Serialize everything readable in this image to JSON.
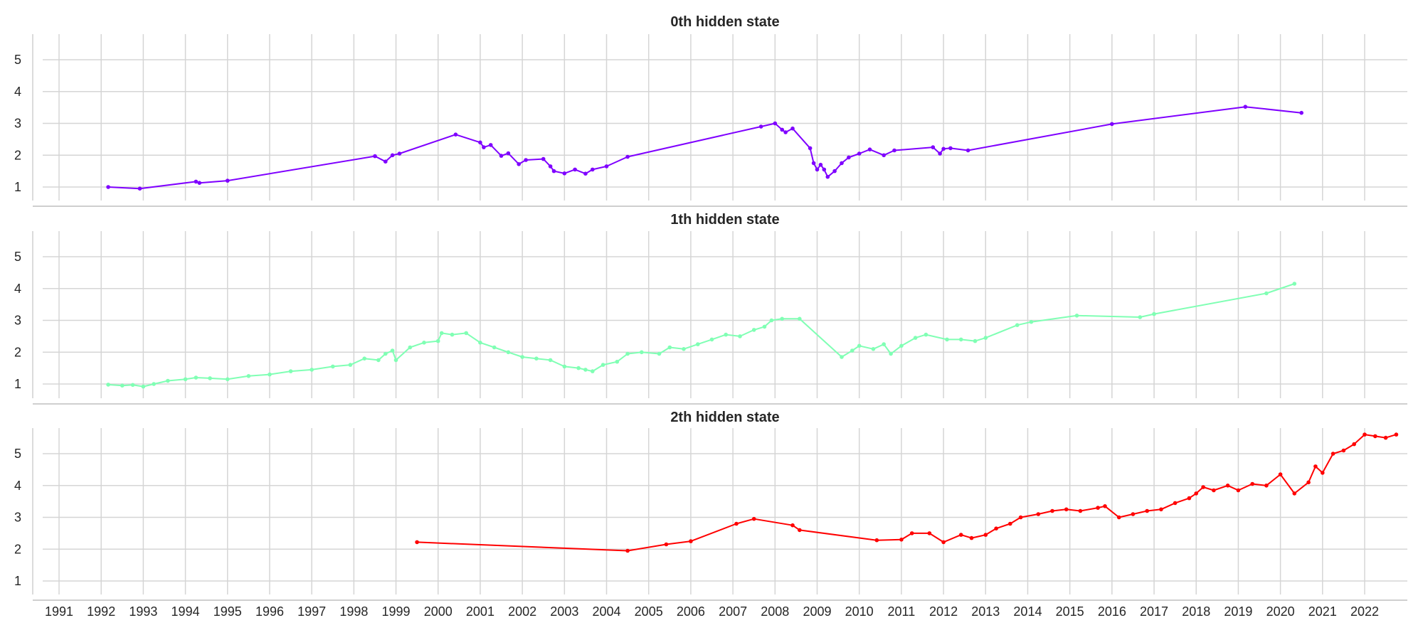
{
  "figure": {
    "x_tick_labels": [
      "1991",
      "1992",
      "1993",
      "1994",
      "1995",
      "1996",
      "1997",
      "1998",
      "1999",
      "2000",
      "2001",
      "2002",
      "2003",
      "2004",
      "2005",
      "2006",
      "2007",
      "2008",
      "2009",
      "2010",
      "2011",
      "2012",
      "2013",
      "2014",
      "2015",
      "2016",
      "2017",
      "2018",
      "2019",
      "2020",
      "2021",
      "2022"
    ],
    "y_tick_labels": [
      "1",
      "2",
      "3",
      "4",
      "5"
    ]
  },
  "chart_data": [
    {
      "type": "line",
      "title": "0th hidden state",
      "xlabel": "",
      "ylabel": "",
      "ylim": [
        0.6,
        5.8
      ],
      "xlim": [
        "1991-01-01",
        "2022-12-31"
      ],
      "grid": true,
      "color": "#7f00ff",
      "series": [
        {
          "x": [
            "1992-02",
            "1992-11",
            "1994-03",
            "1994-04",
            "1994-12",
            "1998-06",
            "1998-09",
            "1998-11",
            "1999-01",
            "2000-05",
            "2001-00",
            "2001-01",
            "2001-03",
            "2001-06",
            "2001-08",
            "2001-11",
            "2002-01",
            "2002-06",
            "2002-08",
            "2002-09",
            "2003-00",
            "2003-03",
            "2003-06",
            "2003-08",
            "2004-00",
            "2004-06",
            "2007-08",
            "2008-00",
            "2008-02",
            "2008-03",
            "2008-05",
            "2008-10",
            "2008-11",
            "2009-00",
            "2009-01",
            "2009-02",
            "2009-03",
            "2009-05",
            "2009-07",
            "2009-09",
            "2010-00",
            "2010-03",
            "2010-07",
            "2010-10",
            "2011-09",
            "2011-11",
            "2012-00",
            "2012-02",
            "2012-07",
            "2016-00",
            "2019-02",
            "2020-06"
          ],
          "y": [
            1.0,
            0.95,
            1.17,
            1.13,
            1.2,
            1.97,
            1.8,
            2.0,
            2.05,
            2.65,
            2.4,
            2.25,
            2.32,
            1.98,
            2.06,
            1.72,
            1.85,
            1.88,
            1.65,
            1.5,
            1.43,
            1.55,
            1.42,
            1.55,
            1.65,
            1.95,
            2.9,
            3.0,
            2.8,
            2.72,
            2.84,
            2.22,
            1.75,
            1.55,
            1.7,
            1.55,
            1.32,
            1.5,
            1.75,
            1.93,
            2.05,
            2.18,
            2.0,
            2.15,
            2.25,
            2.05,
            2.2,
            2.22,
            2.15,
            2.98,
            3.52,
            3.33
          ]
        }
      ]
    },
    {
      "type": "line",
      "title": "1th hidden state",
      "xlabel": "",
      "ylabel": "",
      "ylim": [
        0.6,
        5.8
      ],
      "xlim": [
        "1991-01-01",
        "2022-12-31"
      ],
      "grid": true,
      "color": "#80ffb4",
      "series": [
        {
          "x": [
            "1992-02",
            "1992-06",
            "1992-09",
            "1993-00",
            "1993-03",
            "1993-07",
            "1994-00",
            "1994-03",
            "1994-07",
            "1995-00",
            "1995-06",
            "1996-00",
            "1996-06",
            "1997-00",
            "1997-06",
            "1997-11",
            "1998-03",
            "1998-07",
            "1998-09",
            "1998-11",
            "1999-00",
            "1999-04",
            "1999-08",
            "2000-00",
            "2000-01",
            "2000-04",
            "2000-08",
            "2001-00",
            "2001-04",
            "2001-08",
            "2002-00",
            "2002-04",
            "2002-08",
            "2003-00",
            "2003-04",
            "2003-06",
            "2003-08",
            "2003-11",
            "2004-03",
            "2004-06",
            "2004-10",
            "2005-03",
            "2005-06",
            "2005-10",
            "2006-02",
            "2006-06",
            "2006-10",
            "2007-02",
            "2007-06",
            "2007-09",
            "2007-11",
            "2008-02",
            "2008-07",
            "2009-07",
            "2009-10",
            "2010-00",
            "2010-04",
            "2010-07",
            "2010-09",
            "2011-00",
            "2011-04",
            "2011-07",
            "2012-01",
            "2012-05",
            "2012-09",
            "2013-00",
            "2013-09",
            "2014-01",
            "2015-02",
            "2016-08",
            "2017-00",
            "2019-08",
            "2020-04"
          ],
          "y": [
            0.98,
            0.95,
            0.97,
            0.92,
            1.0,
            1.1,
            1.15,
            1.2,
            1.18,
            1.15,
            1.25,
            1.3,
            1.4,
            1.45,
            1.55,
            1.6,
            1.8,
            1.75,
            1.95,
            2.05,
            1.75,
            2.15,
            2.3,
            2.35,
            2.6,
            2.55,
            2.6,
            2.3,
            2.15,
            2.0,
            1.85,
            1.8,
            1.75,
            1.55,
            1.5,
            1.45,
            1.4,
            1.6,
            1.7,
            1.95,
            2.0,
            1.95,
            2.15,
            2.1,
            2.25,
            2.4,
            2.55,
            2.5,
            2.7,
            2.8,
            3.0,
            3.05,
            3.05,
            1.85,
            2.05,
            2.2,
            2.1,
            2.25,
            1.95,
            2.2,
            2.45,
            2.55,
            2.4,
            2.4,
            2.35,
            2.45,
            2.85,
            2.95,
            3.15,
            3.1,
            3.2,
            3.85,
            4.15
          ]
        }
      ]
    },
    {
      "type": "line",
      "title": "2th hidden state",
      "xlabel": "",
      "ylabel": "",
      "ylim": [
        0.6,
        5.8
      ],
      "xlim": [
        "1991-01-01",
        "2022-12-31"
      ],
      "grid": true,
      "color": "#ff0000",
      "series": [
        {
          "x": [
            "1999-06",
            "2004-06",
            "2005-05",
            "2006-00",
            "2007-01",
            "2007-06",
            "2008-05",
            "2008-07",
            "2010-05",
            "2011-00",
            "2011-03",
            "2011-08",
            "2012-00",
            "2012-05",
            "2012-08",
            "2013-00",
            "2013-03",
            "2013-07",
            "2013-10",
            "2014-03",
            "2014-07",
            "2014-11",
            "2015-03",
            "2015-08",
            "2015-10",
            "2016-02",
            "2016-06",
            "2016-10",
            "2017-02",
            "2017-06",
            "2017-10",
            "2018-00",
            "2018-02",
            "2018-05",
            "2018-09",
            "2019-00",
            "2019-04",
            "2019-08",
            "2020-00",
            "2020-04",
            "2020-08",
            "2020-10",
            "2021-00",
            "2021-03",
            "2021-06",
            "2021-09",
            "2022-00",
            "2022-03",
            "2022-06",
            "2022-09"
          ],
          "y": [
            2.22,
            1.95,
            2.15,
            2.25,
            2.8,
            2.95,
            2.75,
            2.6,
            2.28,
            2.3,
            2.5,
            2.5,
            2.22,
            2.45,
            2.35,
            2.45,
            2.65,
            2.8,
            3.0,
            3.1,
            3.2,
            3.25,
            3.2,
            3.3,
            3.35,
            3.0,
            3.1,
            3.2,
            3.25,
            3.45,
            3.6,
            3.75,
            3.95,
            3.85,
            4.0,
            3.85,
            4.05,
            4.0,
            4.35,
            3.75,
            4.1,
            4.6,
            4.4,
            5.0,
            5.1,
            5.3,
            5.6,
            5.55,
            5.5,
            5.6
          ]
        }
      ]
    }
  ]
}
